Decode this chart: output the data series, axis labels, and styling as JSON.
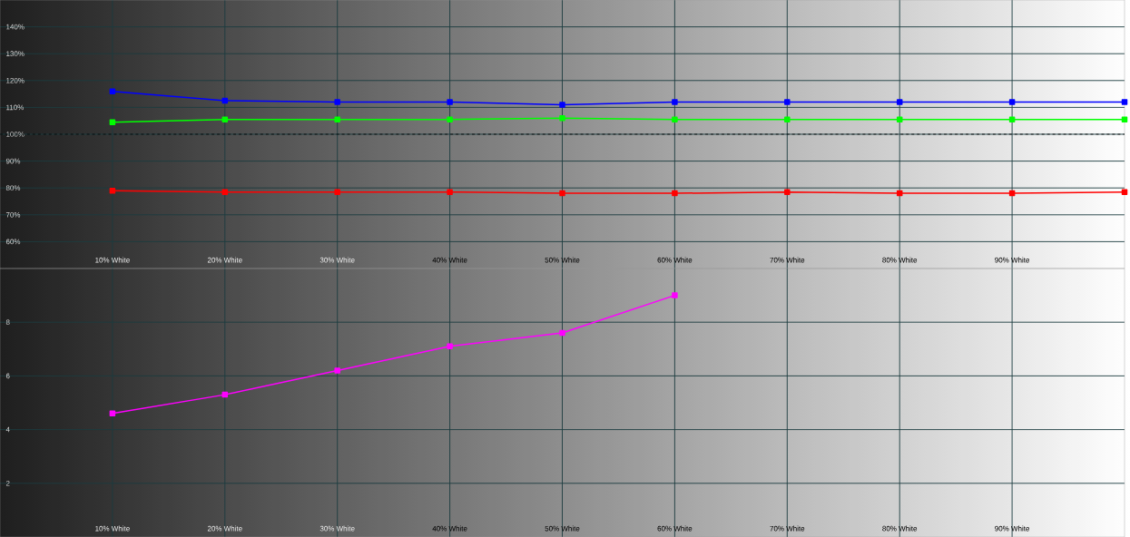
{
  "chart_data": [
    {
      "type": "line",
      "marker": "square",
      "grid": true,
      "xlim": [
        0,
        100
      ],
      "xticks": [
        {
          "value": 10,
          "label": "10% White"
        },
        {
          "value": 20,
          "label": "20% White"
        },
        {
          "value": 30,
          "label": "30% White"
        },
        {
          "value": 40,
          "label": "40% White"
        },
        {
          "value": 50,
          "label": "50% White"
        },
        {
          "value": 60,
          "label": "60% White"
        },
        {
          "value": 70,
          "label": "70% White"
        },
        {
          "value": 80,
          "label": "80% White"
        },
        {
          "value": 90,
          "label": "90% White"
        }
      ],
      "ylim": [
        50,
        150
      ],
      "yticks": [
        {
          "value": 60,
          "label": "60%"
        },
        {
          "value": 70,
          "label": "70%"
        },
        {
          "value": 80,
          "label": "80%"
        },
        {
          "value": 90,
          "label": "90%"
        },
        {
          "value": 100,
          "label": "100%"
        },
        {
          "value": 110,
          "label": "110%"
        },
        {
          "value": 120,
          "label": "120%"
        },
        {
          "value": 130,
          "label": "130%"
        },
        {
          "value": 140,
          "label": "140%"
        }
      ],
      "x": [
        10,
        20,
        30,
        40,
        50,
        60,
        70,
        80,
        90,
        100
      ],
      "ref_lines": [
        {
          "axis": "y",
          "value": 100,
          "line_style": "dashed",
          "color": "#000000"
        }
      ],
      "series": [
        {
          "color": "#0000ff",
          "values": [
            116,
            112.5,
            112,
            112,
            111,
            112,
            112,
            112,
            112,
            112
          ]
        },
        {
          "color": "#00ff00",
          "values": [
            104.5,
            105.5,
            105.5,
            105.5,
            106,
            105.5,
            105.5,
            105.5,
            105.5,
            105.5
          ]
        },
        {
          "color": "#ff0000",
          "values": [
            79,
            78.5,
            78.5,
            78.5,
            78,
            78,
            78.5,
            78,
            78,
            78.5
          ]
        }
      ]
    },
    {
      "type": "line",
      "marker": "square",
      "grid": true,
      "xlim": [
        0,
        100
      ],
      "xticks": [
        {
          "value": 10,
          "label": "10% White"
        },
        {
          "value": 20,
          "label": "20% White"
        },
        {
          "value": 30,
          "label": "30% White"
        },
        {
          "value": 40,
          "label": "40% White"
        },
        {
          "value": 50,
          "label": "50% White"
        },
        {
          "value": 60,
          "label": "60% White"
        },
        {
          "value": 70,
          "label": "70% White"
        },
        {
          "value": 80,
          "label": "80% White"
        },
        {
          "value": 90,
          "label": "90% White"
        }
      ],
      "ylim": [
        0,
        10
      ],
      "yticks": [
        2,
        4,
        6,
        8
      ],
      "series": [
        {
          "color": "#ff00ff",
          "x": [
            10,
            20,
            30,
            40,
            50,
            60
          ],
          "values": [
            4.6,
            5.3,
            6.2,
            7.1,
            7.6,
            9.0
          ]
        }
      ]
    }
  ]
}
